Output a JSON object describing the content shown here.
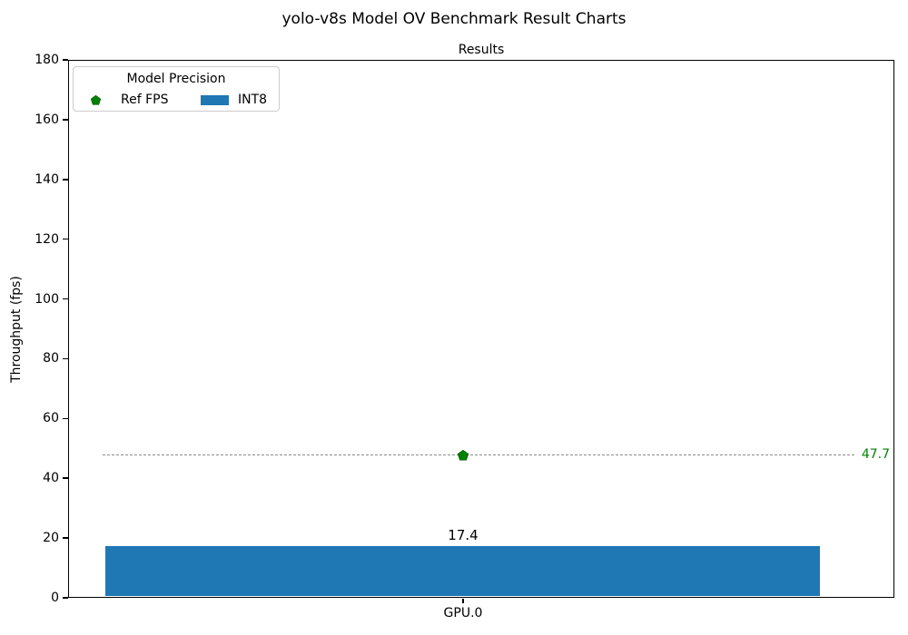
{
  "figure": {
    "title": "yolo-v8s Model OV Benchmark Result Charts"
  },
  "chart_data": {
    "type": "bar",
    "title": "Results",
    "xlabel": "",
    "ylabel": "Throughput (fps)",
    "categories": [
      "GPU.0"
    ],
    "series": [
      {
        "name": "INT8",
        "values": [
          17.4
        ],
        "value_labels": [
          "17.4"
        ],
        "color": "#1f77b4"
      }
    ],
    "ref_line": {
      "legend_label": "Ref FPS",
      "value": 47.7,
      "value_label": "47.7",
      "marker": "pentagon",
      "marker_color": "#008000",
      "line_color": "#8c8c8c",
      "line_style": "dashed"
    },
    "ylim": [
      0,
      180
    ],
    "yticks": [
      0,
      20,
      40,
      60,
      80,
      100,
      120,
      140,
      160,
      180
    ],
    "grid": false,
    "legend": {
      "title": "Model Precision",
      "position": "upper-left",
      "entries": [
        "Ref FPS",
        "INT8"
      ]
    }
  }
}
